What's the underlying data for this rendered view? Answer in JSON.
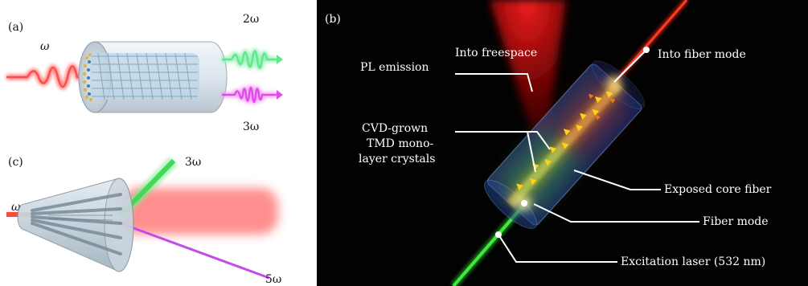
{
  "panel_a": {
    "label": "(a)",
    "input_freq": "ω",
    "output_2": "2ω",
    "output_3": "3ω"
  },
  "panel_c": {
    "label": "(c)",
    "input_freq": "ω",
    "output_3": "3ω",
    "output_5": "5ω"
  },
  "panel_b": {
    "label": "(b)",
    "annotations": {
      "into_freespace": "Into freespace",
      "pl_emission": "PL emission",
      "into_fiber_mode": "Into fiber mode",
      "cvd_line1": "CVD-grown",
      "cvd_line2": "TMD mono-",
      "cvd_line3": "layer crystals",
      "exposed_core": "Exposed core fiber",
      "fiber_mode": "Fiber mode",
      "excitation": "Excitation laser (532 nm)"
    }
  },
  "colors": {
    "red_wave": "#ff4b4b",
    "green_wave": "#5fe88f",
    "magenta_wave": "#e24ce8",
    "laser_green": "#33cc33",
    "laser_red": "#ff2a1a",
    "triangle_yellow": "#ffd21a"
  }
}
